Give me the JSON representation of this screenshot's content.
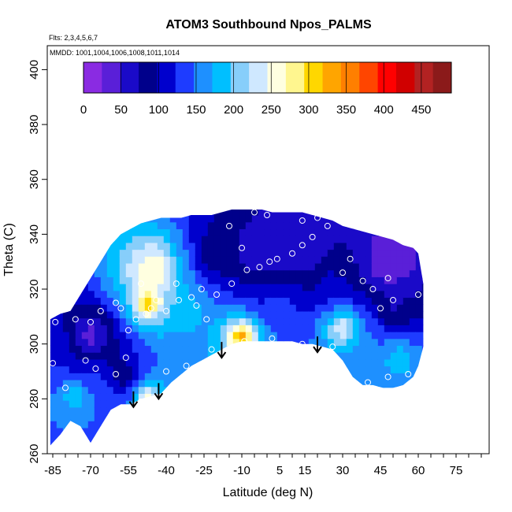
{
  "chart_data": {
    "type": "heatmap",
    "title": "ATOM3 Southbound Npos_PALMS",
    "flights_label": "Flts: 2,3,4,5,6,7",
    "mmdd_label": "MMDD: 1001,1004,1006,1008,1011,1014",
    "xlabel": "Latitude (deg N)",
    "ylabel": "Theta (C)",
    "xlim": [
      -85,
      85
    ],
    "ylim": [
      260,
      405
    ],
    "x_ticks": [
      -85,
      -70,
      -55,
      -40,
      -25,
      -10,
      5,
      15,
      30,
      45,
      60,
      75
    ],
    "x_minor_ticks": [
      -85,
      -80,
      -75,
      -70,
      -65,
      -60,
      -55,
      -50,
      -45,
      -40,
      -35,
      -30,
      -25,
      -20,
      -15,
      -10,
      -5,
      0,
      5,
      10,
      15,
      20,
      25,
      30,
      35,
      40,
      45,
      50,
      55,
      60,
      65,
      70,
      75,
      80,
      85
    ],
    "y_ticks": [
      260,
      280,
      300,
      320,
      340,
      360,
      380,
      400
    ],
    "colorbar": {
      "ticks": [
        0,
        50,
        100,
        150,
        200,
        250,
        300,
        350,
        400,
        450
      ],
      "max": 490,
      "colors": [
        "#8a2be2",
        "#5a1fd8",
        "#1a0ac8",
        "#00008b",
        "#0000cd",
        "#1e3cff",
        "#1e90ff",
        "#00bfff",
        "#87cefa",
        "#cfe8ff",
        "#ffffe0",
        "#fff68f",
        "#ffd700",
        "#ffa500",
        "#ff7f00",
        "#ff4500",
        "#ff0000",
        "#d00000",
        "#b22222",
        "#8b1a1a"
      ]
    },
    "arrows": [
      {
        "x": -53,
        "theta": 277
      },
      {
        "x": -43,
        "theta": 280
      },
      {
        "x": -18,
        "theta": 295
      },
      {
        "x": 20,
        "theta": 297
      }
    ],
    "surface": [
      {
        "x": -86,
        "bottom": 263,
        "top": 309
      },
      {
        "x": -82,
        "bottom": 267,
        "top": 311
      },
      {
        "x": -78,
        "bottom": 272,
        "top": 312
      },
      {
        "x": -74,
        "bottom": 270,
        "top": 318
      },
      {
        "x": -70,
        "bottom": 264,
        "top": 324
      },
      {
        "x": -66,
        "bottom": 270,
        "top": 330
      },
      {
        "x": -62,
        "bottom": 276,
        "top": 336
      },
      {
        "x": -58,
        "bottom": 278,
        "top": 340
      },
      {
        "x": -54,
        "bottom": 278,
        "top": 342
      },
      {
        "x": -50,
        "bottom": 280,
        "top": 344
      },
      {
        "x": -46,
        "bottom": 281,
        "top": 345
      },
      {
        "x": -42,
        "bottom": 282,
        "top": 346
      },
      {
        "x": -38,
        "bottom": 286,
        "top": 346
      },
      {
        "x": -34,
        "bottom": 289,
        "top": 346
      },
      {
        "x": -30,
        "bottom": 292,
        "top": 347
      },
      {
        "x": -26,
        "bottom": 294,
        "top": 347
      },
      {
        "x": -22,
        "bottom": 296,
        "top": 347
      },
      {
        "x": -18,
        "bottom": 298,
        "top": 348
      },
      {
        "x": -14,
        "bottom": 300,
        "top": 349
      },
      {
        "x": -10,
        "bottom": 301,
        "top": 349
      },
      {
        "x": -6,
        "bottom": 301,
        "top": 349
      },
      {
        "x": -2,
        "bottom": 301,
        "top": 349
      },
      {
        "x": 2,
        "bottom": 301,
        "top": 348
      },
      {
        "x": 6,
        "bottom": 301,
        "top": 348
      },
      {
        "x": 10,
        "bottom": 301,
        "top": 348
      },
      {
        "x": 14,
        "bottom": 300,
        "top": 348
      },
      {
        "x": 18,
        "bottom": 300,
        "top": 347
      },
      {
        "x": 22,
        "bottom": 299,
        "top": 346
      },
      {
        "x": 26,
        "bottom": 298,
        "top": 345
      },
      {
        "x": 30,
        "bottom": 294,
        "top": 343
      },
      {
        "x": 34,
        "bottom": 288,
        "top": 342
      },
      {
        "x": 38,
        "bottom": 285,
        "top": 341
      },
      {
        "x": 42,
        "bottom": 285,
        "top": 340
      },
      {
        "x": 46,
        "bottom": 284,
        "top": 339
      },
      {
        "x": 50,
        "bottom": 284,
        "top": 338
      },
      {
        "x": 54,
        "bottom": 285,
        "top": 336
      },
      {
        "x": 58,
        "bottom": 288,
        "top": 335
      },
      {
        "x": 60,
        "bottom": 292,
        "top": 333
      },
      {
        "x": 62,
        "bottom": 299,
        "top": 322
      }
    ],
    "samples": [
      {
        "x": -84,
        "theta": 308
      },
      {
        "x": -76,
        "theta": 309
      },
      {
        "x": -70,
        "theta": 308
      },
      {
        "x": -66,
        "theta": 312
      },
      {
        "x": -60,
        "theta": 315
      },
      {
        "x": -58,
        "theta": 313
      },
      {
        "x": -55,
        "theta": 305
      },
      {
        "x": -52,
        "theta": 309
      },
      {
        "x": -48,
        "theta": 311
      },
      {
        "x": -46,
        "theta": 313
      },
      {
        "x": -40,
        "theta": 312
      },
      {
        "x": -35,
        "theta": 316
      },
      {
        "x": -30,
        "theta": 317
      },
      {
        "x": -26,
        "theta": 320
      },
      {
        "x": -20,
        "theta": 318
      },
      {
        "x": -14,
        "theta": 322
      },
      {
        "x": -8,
        "theta": 327
      },
      {
        "x": -3,
        "theta": 328
      },
      {
        "x": 1,
        "theta": 330
      },
      {
        "x": 4,
        "theta": 331
      },
      {
        "x": 10,
        "theta": 333
      },
      {
        "x": 14,
        "theta": 336
      },
      {
        "x": 18,
        "theta": 339
      },
      {
        "x": 24,
        "theta": 343
      },
      {
        "x": -10,
        "theta": 335
      },
      {
        "x": -15,
        "theta": 343
      },
      {
        "x": -5,
        "theta": 348
      },
      {
        "x": 0,
        "theta": 347
      },
      {
        "x": 14,
        "theta": 345
      },
      {
        "x": 20,
        "theta": 346
      },
      {
        "x": 30,
        "theta": 326
      },
      {
        "x": 33,
        "theta": 331
      },
      {
        "x": 38,
        "theta": 323
      },
      {
        "x": 42,
        "theta": 320
      },
      {
        "x": 48,
        "theta": 324
      },
      {
        "x": 55,
        "theta": 337
      },
      {
        "x": 59,
        "theta": 336
      },
      {
        "x": 60,
        "theta": 318
      },
      {
        "x": 50,
        "theta": 316
      },
      {
        "x": 45,
        "theta": 313
      },
      {
        "x": -50,
        "theta": 322
      },
      {
        "x": -44,
        "theta": 316
      },
      {
        "x": -36,
        "theta": 322
      },
      {
        "x": -28,
        "theta": 314
      },
      {
        "x": -24,
        "theta": 309
      },
      {
        "x": -60,
        "theta": 289
      },
      {
        "x": -68,
        "theta": 291
      },
      {
        "x": -80,
        "theta": 284
      },
      {
        "x": -85,
        "theta": 293
      },
      {
        "x": -72,
        "theta": 294
      },
      {
        "x": -56,
        "theta": 295
      },
      {
        "x": -32,
        "theta": 292
      },
      {
        "x": -40,
        "theta": 290
      },
      {
        "x": -22,
        "theta": 298
      },
      {
        "x": -50,
        "theta": 279
      },
      {
        "x": -9,
        "theta": 301
      },
      {
        "x": 2,
        "theta": 302
      },
      {
        "x": 14,
        "theta": 300
      },
      {
        "x": 26,
        "theta": 299
      },
      {
        "x": 40,
        "theta": 286
      },
      {
        "x": 48,
        "theta": 288
      },
      {
        "x": 56,
        "theta": 289
      }
    ]
  }
}
